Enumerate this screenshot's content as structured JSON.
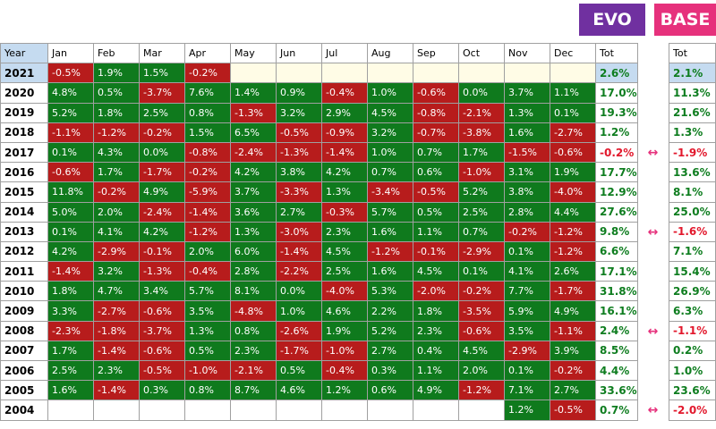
{
  "badges": {
    "evo": "EVO",
    "base": "BASE"
  },
  "headers": [
    "Year",
    "Jan",
    "Feb",
    "Mar",
    "Apr",
    "May",
    "Jun",
    "Jul",
    "Aug",
    "Sep",
    "Oct",
    "Nov",
    "Dec",
    "Tot"
  ],
  "base_header": "Tot",
  "rows": [
    {
      "year": "2021",
      "months": [
        "-0.5%",
        "1.9%",
        "1.5%",
        "-0.2%",
        "",
        "",
        "",
        "",
        "",
        "",
        "",
        ""
      ],
      "tot": "2.6%",
      "base": "2.1%"
    },
    {
      "year": "2020",
      "months": [
        "4.8%",
        "0.5%",
        "-3.7%",
        "7.6%",
        "1.4%",
        "0.9%",
        "-0.4%",
        "1.0%",
        "-0.6%",
        "0.0%",
        "3.7%",
        "1.1%"
      ],
      "tot": "17.0%",
      "base": "11.3%"
    },
    {
      "year": "2019",
      "months": [
        "5.2%",
        "1.8%",
        "2.5%",
        "0.8%",
        "-1.3%",
        "3.2%",
        "2.9%",
        "4.5%",
        "-0.8%",
        "-2.1%",
        "1.3%",
        "0.1%"
      ],
      "tot": "19.3%",
      "base": "21.6%"
    },
    {
      "year": "2018",
      "months": [
        "-1.1%",
        "-1.2%",
        "-0.2%",
        "1.5%",
        "6.5%",
        "-0.5%",
        "-0.9%",
        "3.2%",
        "-0.7%",
        "-3.8%",
        "1.6%",
        "-2.7%"
      ],
      "tot": "1.2%",
      "base": "1.3%"
    },
    {
      "year": "2017",
      "months": [
        "0.1%",
        "4.3%",
        "0.0%",
        "-0.8%",
        "-2.4%",
        "-1.3%",
        "-1.4%",
        "1.0%",
        "0.7%",
        "1.7%",
        "-1.5%",
        "-0.6%"
      ],
      "tot": "-0.2%",
      "base": "-1.9%"
    },
    {
      "year": "2016",
      "months": [
        "-0.6%",
        "1.7%",
        "-1.7%",
        "-0.2%",
        "4.2%",
        "3.8%",
        "4.2%",
        "0.7%",
        "0.6%",
        "-1.0%",
        "3.1%",
        "1.9%"
      ],
      "tot": "17.7%",
      "base": "13.6%"
    },
    {
      "year": "2015",
      "months": [
        "11.8%",
        "-0.2%",
        "4.9%",
        "-5.9%",
        "3.7%",
        "-3.3%",
        "1.3%",
        "-3.4%",
        "-0.5%",
        "5.2%",
        "3.8%",
        "-4.0%"
      ],
      "tot": "12.9%",
      "base": "8.1%"
    },
    {
      "year": "2014",
      "months": [
        "5.0%",
        "2.0%",
        "-2.4%",
        "-1.4%",
        "3.6%",
        "2.7%",
        "-0.3%",
        "5.7%",
        "0.5%",
        "2.5%",
        "2.8%",
        "4.4%"
      ],
      "tot": "27.6%",
      "base": "25.0%"
    },
    {
      "year": "2013",
      "months": [
        "0.1%",
        "4.1%",
        "4.2%",
        "-1.2%",
        "1.3%",
        "-3.0%",
        "2.3%",
        "1.6%",
        "1.1%",
        "0.7%",
        "-0.2%",
        "-1.2%"
      ],
      "tot": "9.8%",
      "base": "-1.6%"
    },
    {
      "year": "2012",
      "months": [
        "4.2%",
        "-2.9%",
        "-0.1%",
        "2.0%",
        "6.0%",
        "-1.4%",
        "4.5%",
        "-1.2%",
        "-0.1%",
        "-2.9%",
        "0.1%",
        "-1.2%"
      ],
      "tot": "6.6%",
      "base": "7.1%"
    },
    {
      "year": "2011",
      "months": [
        "-1.4%",
        "3.2%",
        "-1.3%",
        "-0.4%",
        "2.8%",
        "-2.2%",
        "2.5%",
        "1.6%",
        "4.5%",
        "0.1%",
        "4.1%",
        "2.6%"
      ],
      "tot": "17.1%",
      "base": "15.4%"
    },
    {
      "year": "2010",
      "months": [
        "1.8%",
        "4.7%",
        "3.4%",
        "5.7%",
        "8.1%",
        "0.0%",
        "-4.0%",
        "5.3%",
        "-2.0%",
        "-0.2%",
        "7.7%",
        "-1.7%"
      ],
      "tot": "31.8%",
      "base": "26.9%"
    },
    {
      "year": "2009",
      "months": [
        "3.3%",
        "-2.7%",
        "-0.6%",
        "3.5%",
        "-4.8%",
        "1.0%",
        "4.6%",
        "2.2%",
        "1.8%",
        "-3.5%",
        "5.9%",
        "4.9%"
      ],
      "tot": "16.1%",
      "base": "6.3%"
    },
    {
      "year": "2008",
      "months": [
        "-2.3%",
        "-1.8%",
        "-3.7%",
        "1.3%",
        "0.8%",
        "-2.6%",
        "1.9%",
        "5.2%",
        "2.3%",
        "-0.6%",
        "3.5%",
        "-1.1%"
      ],
      "tot": "2.4%",
      "base": "-1.1%"
    },
    {
      "year": "2007",
      "months": [
        "1.7%",
        "-1.4%",
        "-0.6%",
        "0.5%",
        "2.3%",
        "-1.7%",
        "-1.0%",
        "2.7%",
        "0.4%",
        "4.5%",
        "-2.9%",
        "3.9%"
      ],
      "tot": "8.5%",
      "base": "0.2%"
    },
    {
      "year": "2006",
      "months": [
        "2.5%",
        "2.3%",
        "-0.5%",
        "-1.0%",
        "-2.1%",
        "0.5%",
        "-0.4%",
        "0.3%",
        "1.1%",
        "2.0%",
        "0.1%",
        "-0.2%"
      ],
      "tot": "4.4%",
      "base": "1.0%"
    },
    {
      "year": "2005",
      "months": [
        "1.6%",
        "-1.4%",
        "0.3%",
        "0.8%",
        "8.7%",
        "4.6%",
        "1.2%",
        "0.6%",
        "4.9%",
        "-1.2%",
        "7.1%",
        "2.7%"
      ],
      "tot": "33.6%",
      "base": "23.6%"
    },
    {
      "year": "2004",
      "months": [
        "",
        "",
        "",
        "",
        "",
        "",
        "",
        "",
        "",
        "",
        "1.2%",
        "-0.5%"
      ],
      "tot": "0.7%",
      "base": "-2.0%"
    }
  ],
  "arrow_rows": [
    "2017",
    "2013",
    "2008",
    "2004"
  ],
  "colors": {
    "positive": "#0f7a1d",
    "negative": "#b71c1c",
    "evo": "#7030a0",
    "base": "#e6317c",
    "selection": "#c5dbf0"
  },
  "icons": {
    "arrow": "double-arrow-icon"
  }
}
